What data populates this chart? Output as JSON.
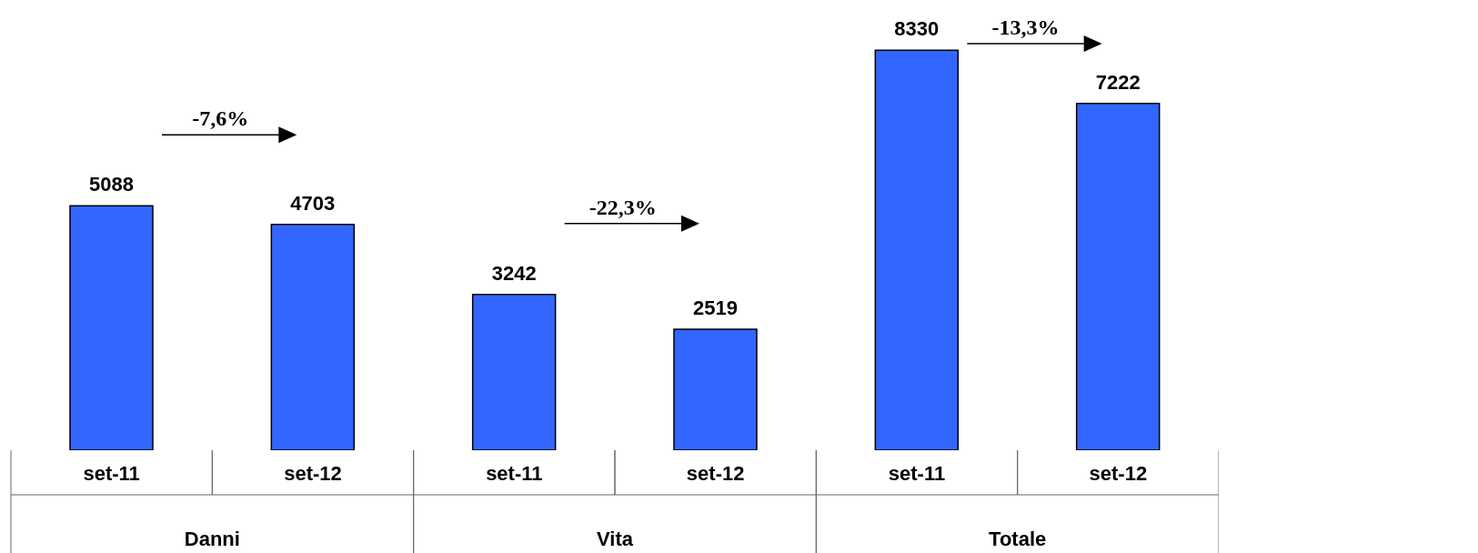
{
  "chart_data": {
    "type": "bar",
    "categories": [
      "set-11",
      "set-12",
      "set-11",
      "set-12",
      "set-11",
      "set-12"
    ],
    "values": [
      5088,
      4703,
      3242,
      2519,
      8330,
      7222
    ],
    "color": "#3366ff",
    "data_labels": true,
    "annotations": [
      "Danni",
      "Vita",
      "Totale",
      "-7,6%",
      "-22,3%",
      "-13,3%"
    ]
  }
}
